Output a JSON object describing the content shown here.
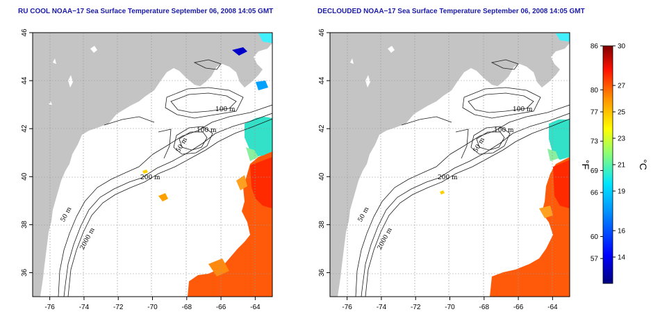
{
  "titles": {
    "left": "RU COOL NOAA−17 Sea Surface Temperature September 06, 2008 14:05 GMT",
    "right": "DECLOUDED NOAA−17 Sea Surface Temperature September 06, 2008 14:05 GMT"
  },
  "axes": {
    "lon_ticks": [
      "-76",
      "-74",
      "-72",
      "-70",
      "-68",
      "-66",
      "-64"
    ],
    "lat_ticks": [
      "36",
      "38",
      "40",
      "42",
      "44",
      "46"
    ]
  },
  "contour_labels": {
    "left": [
      "100 m",
      "100 m",
      "50 m",
      "200 m",
      "50 m",
      "2000 m"
    ],
    "right": [
      "100 m",
      "100 m",
      "50 m",
      "200 m",
      "50 m",
      "2000 m"
    ]
  },
  "colorbar": {
    "fahrenheit_ticks": [
      "86",
      "80",
      "77",
      "73",
      "69",
      "66",
      "60",
      "57"
    ],
    "celsius_ticks": [
      "30",
      "27",
      "25",
      "23",
      "21",
      "19",
      "16",
      "14"
    ],
    "fahrenheit_unit": "°F",
    "celsius_unit": "°C",
    "celsius_range": [
      12,
      30
    ],
    "colors": [
      "#00007f",
      "#0000ff",
      "#0080ff",
      "#00ffff",
      "#80ff80",
      "#ffff00",
      "#ff8000",
      "#ff0000",
      "#7f0000"
    ]
  },
  "colors": {
    "land": "#c4c4c4",
    "ocean": "#ffffff",
    "title": "#1a1aa6"
  }
}
